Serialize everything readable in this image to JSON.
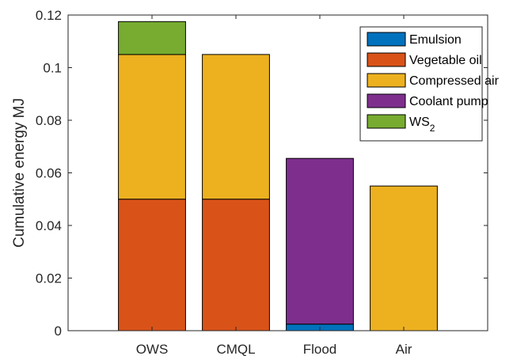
{
  "chart_data": {
    "type": "bar",
    "stacked": true,
    "categories": [
      "OWS",
      "CMQL",
      "Flood",
      "Air"
    ],
    "xlim": [
      0,
      5
    ],
    "ylim": [
      0,
      0.12
    ],
    "yticks": [
      0,
      0.02,
      0.04,
      0.06,
      0.08,
      0.1,
      0.12
    ],
    "ytick_labels": [
      "0",
      "0.02",
      "0.04",
      "0.06",
      "0.08",
      "0.1",
      "0.12"
    ],
    "xlabel": "",
    "ylabel": "Cumulative energy MJ",
    "title": "",
    "grid": false,
    "legend": {
      "position": "top-right"
    },
    "series": [
      {
        "name": "Emulsion",
        "color": "#0072BD",
        "values": [
          0,
          0,
          0.0025,
          0
        ]
      },
      {
        "name": "Vegetable oil",
        "color": "#D95319",
        "values": [
          0.05,
          0.05,
          0,
          0
        ]
      },
      {
        "name": "Compressed air",
        "color": "#EDB120",
        "values": [
          0.055,
          0.055,
          0,
          0.055
        ]
      },
      {
        "name": "Coolant pump",
        "color": "#7E2F8E",
        "values": [
          0,
          0,
          0.063,
          0
        ]
      },
      {
        "name": "WS",
        "name_sub": "2",
        "color": "#77AC30",
        "values": [
          0.0125,
          0,
          0,
          0
        ]
      }
    ]
  }
}
